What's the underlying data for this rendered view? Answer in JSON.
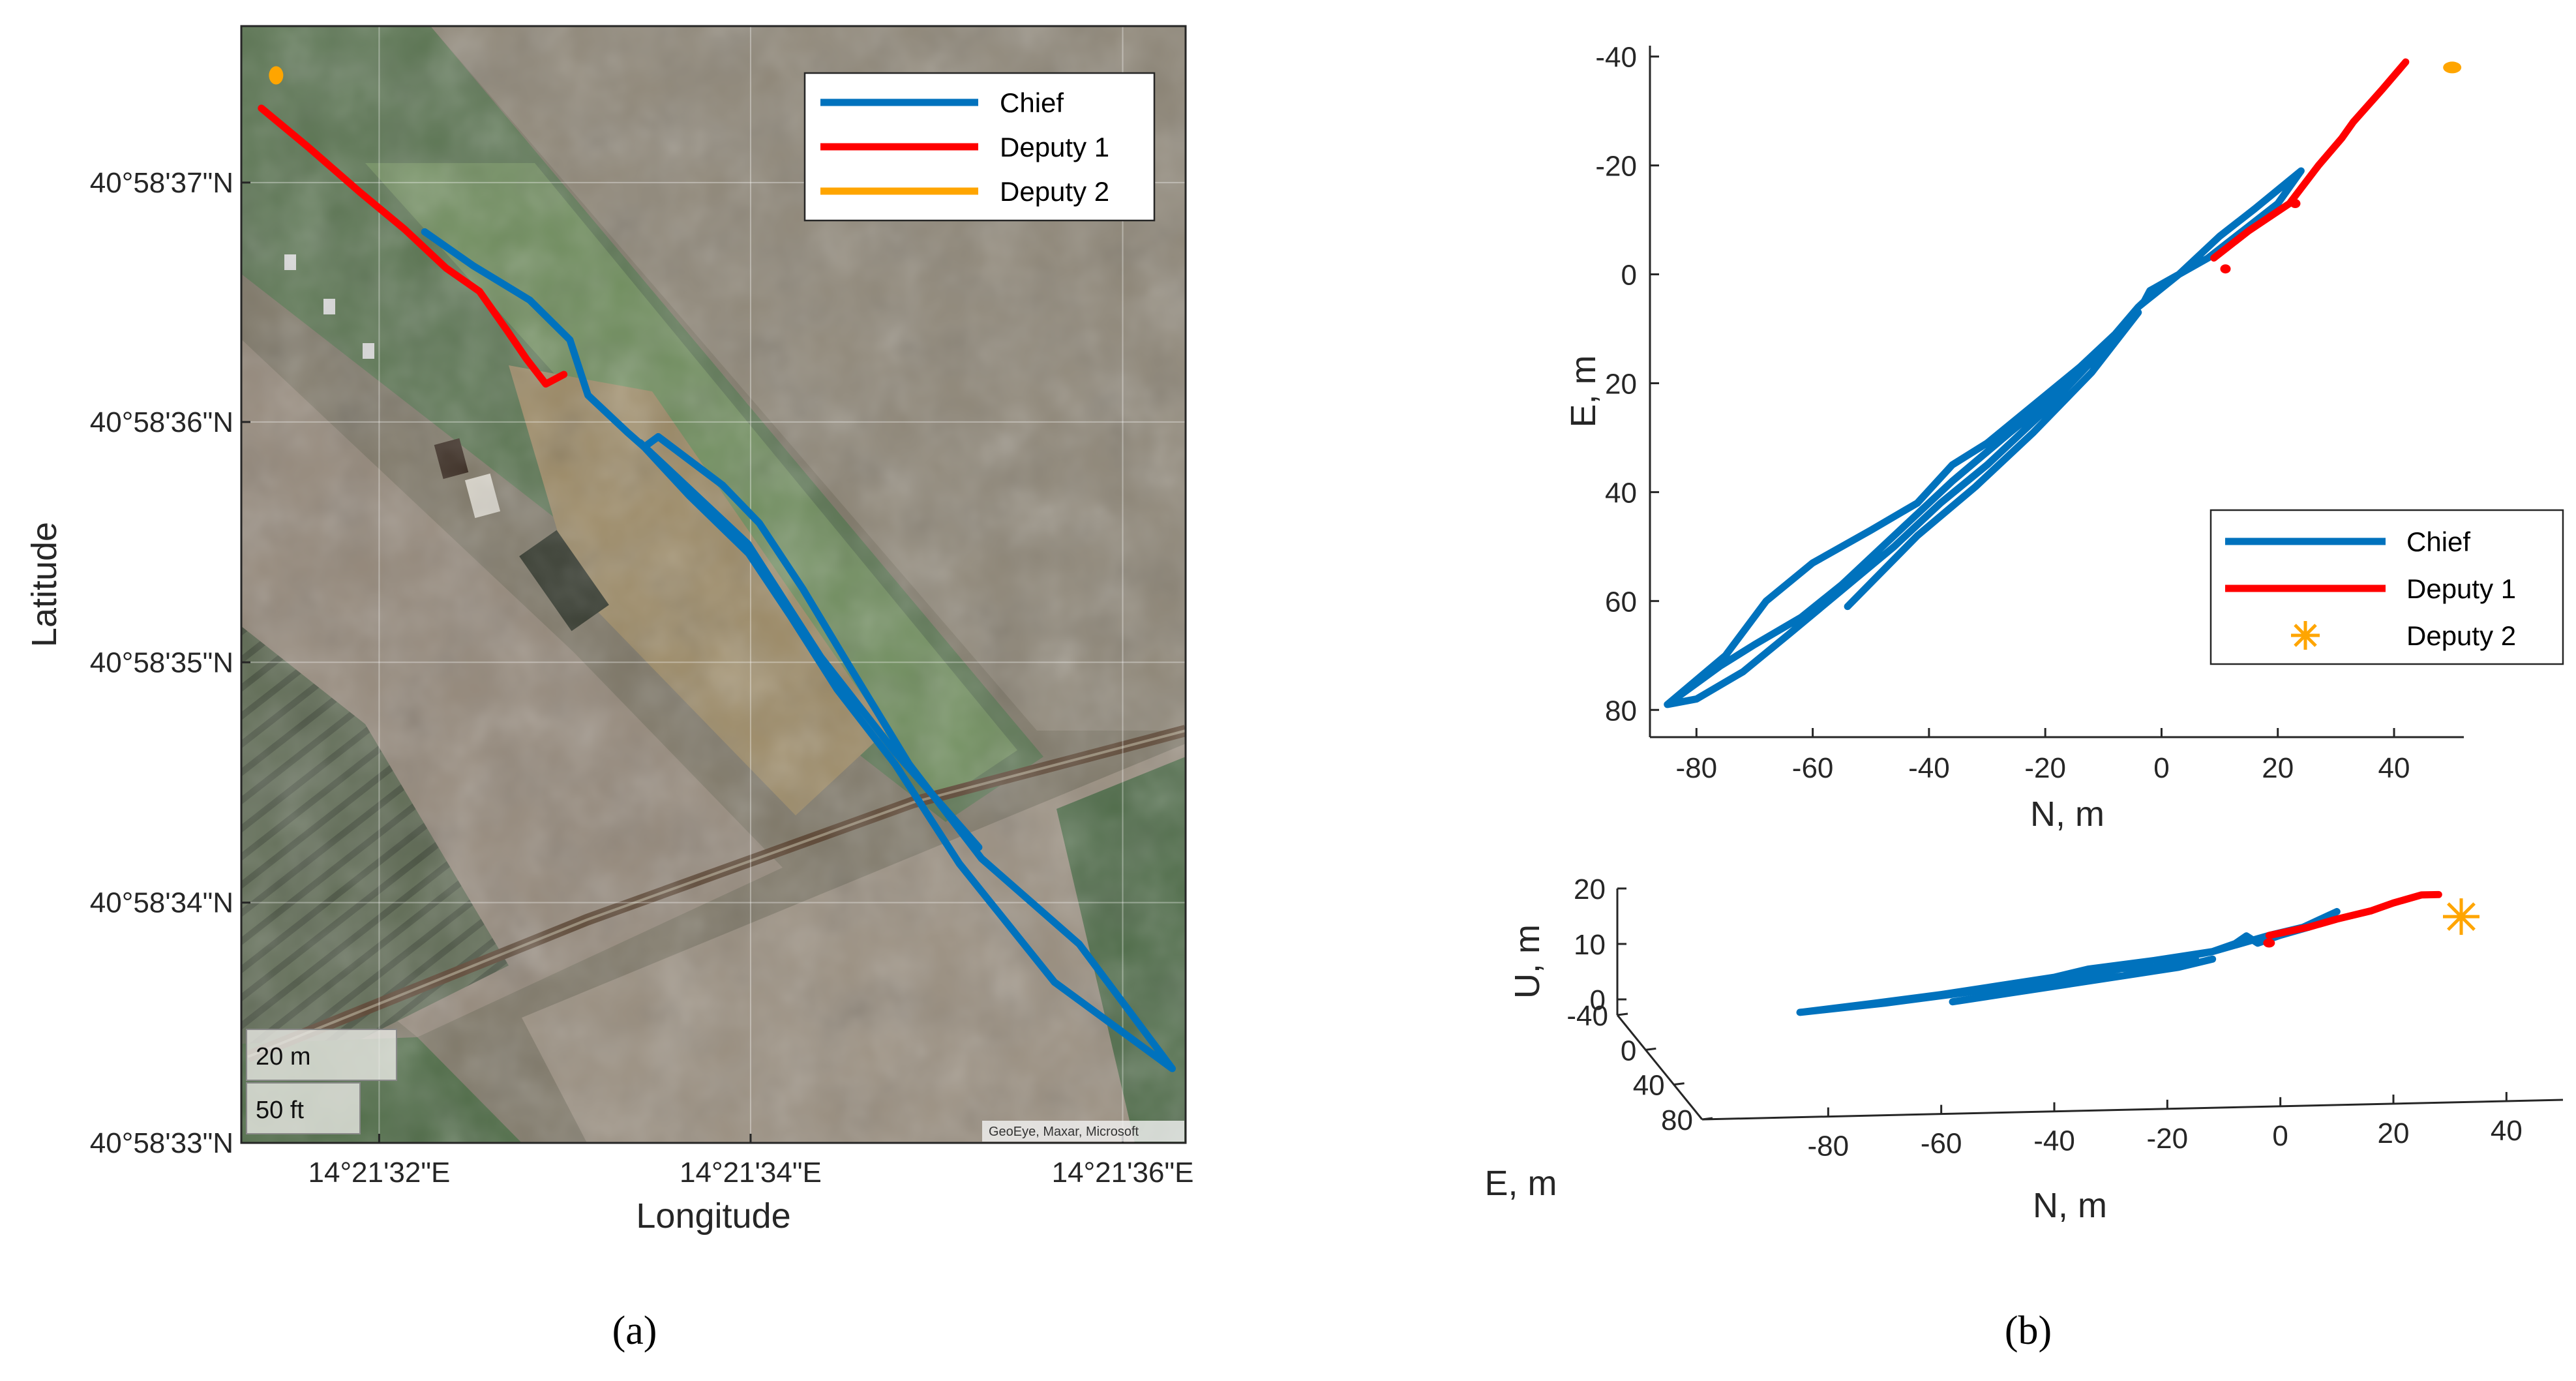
{
  "colors": {
    "chief": "#0072BD",
    "deputy1": "#FF0000",
    "deputy2": "#FFA500",
    "axis": "#262626"
  },
  "panels": {
    "a": "(a)",
    "b": "(b)"
  },
  "chart_data": [
    {
      "id": "map",
      "type": "line",
      "title": "",
      "xlabel": "Longitude",
      "ylabel": "Latitude",
      "xlim": [
        14.358683,
        14.360094
      ],
      "ylim": [
        40.975833,
        40.977125
      ],
      "xticks": [
        {
          "v": 14.358889,
          "label": "14°21'32\"E"
        },
        {
          "v": 14.359444,
          "label": "14°21'34\"E"
        },
        {
          "v": 14.36,
          "label": "14°21'36\"E"
        }
      ],
      "yticks": [
        {
          "v": 40.976944,
          "label": "40°58'37\"N"
        },
        {
          "v": 40.976667,
          "label": "40°58'36\"N"
        },
        {
          "v": 40.976389,
          "label": "40°58'35\"N"
        },
        {
          "v": 40.976111,
          "label": "40°58'34\"N"
        },
        {
          "v": 40.975833,
          "label": "40°58'33\"N"
        }
      ],
      "legend": {
        "position": "top-right"
      },
      "scale_bar": [
        "20 m",
        "50 ft"
      ],
      "credit": "GeoEye, Maxar, Microsoft",
      "series": [
        {
          "name": "Chief",
          "color_key": "chief",
          "marker": "line",
          "points": [
            [
              14.358957,
              40.976887
            ],
            [
              14.359029,
              40.976848
            ],
            [
              14.359114,
              40.976808
            ],
            [
              14.359174,
              40.976762
            ],
            [
              14.359201,
              40.976698
            ],
            [
              14.35926,
              40.976655
            ],
            [
              14.359285,
              40.976638
            ],
            [
              14.359306,
              40.97665
            ],
            [
              14.359402,
              40.976594
            ],
            [
              14.359457,
              40.97655
            ],
            [
              14.359522,
              40.976474
            ],
            [
              14.359592,
              40.976384
            ],
            [
              14.359681,
              40.976271
            ],
            [
              14.359789,
              40.976162
            ],
            [
              14.359935,
              40.976063
            ],
            [
              14.360074,
              40.975919
            ],
            [
              14.359898,
              40.976019
            ],
            [
              14.359756,
              40.976156
            ],
            [
              14.35966,
              40.976271
            ],
            [
              14.359573,
              40.976358
            ],
            [
              14.359504,
              40.976442
            ],
            [
              14.359441,
              40.976515
            ],
            [
              14.359352,
              40.976582
            ],
            [
              14.359279,
              40.976643
            ],
            [
              14.35944,
              40.976526
            ],
            [
              14.359549,
              40.976395
            ],
            [
              14.35966,
              40.976285
            ],
            [
              14.359785,
              40.976175
            ]
          ]
        },
        {
          "name": "Deputy 1",
          "color_key": "deputy1",
          "marker": "line",
          "points": [
            [
              14.358713,
              40.97703
            ],
            [
              14.358783,
              40.976985
            ],
            [
              14.35886,
              40.976933
            ],
            [
              14.358927,
              40.97689
            ],
            [
              14.358989,
              40.976845
            ],
            [
              14.359039,
              40.976818
            ],
            [
              14.35908,
              40.976773
            ],
            [
              14.359109,
              40.97674
            ],
            [
              14.359138,
              40.976711
            ],
            [
              14.359165,
              40.976722
            ]
          ]
        },
        {
          "name": "Deputy 2",
          "color_key": "deputy2",
          "marker": "dot",
          "points": [
            [
              14.358735,
              40.977068
            ]
          ]
        }
      ]
    },
    {
      "id": "ne",
      "type": "line",
      "title": "",
      "xlabel": "N, m",
      "ylabel": "E, m",
      "xlim": [
        -88,
        52
      ],
      "ylim": [
        85,
        -42
      ],
      "yreversed": true,
      "xticks": [
        -80,
        -60,
        -40,
        -20,
        0,
        20,
        40
      ],
      "yticks": [
        -40,
        -20,
        0,
        20,
        40,
        60,
        80
      ],
      "legend": {
        "position": "bottom-right"
      },
      "series": [
        {
          "name": "Chief",
          "color_key": "chief",
          "marker": "line",
          "points": [
            [
              -85,
              79
            ],
            [
              -75,
              70
            ],
            [
              -68,
              60
            ],
            [
              -60,
              53
            ],
            [
              -50,
              47
            ],
            [
              -42,
              42
            ],
            [
              -36,
              35
            ],
            [
              -30,
              31
            ],
            [
              -22,
              24
            ],
            [
              -14,
              17
            ],
            [
              -6,
              9
            ],
            [
              -4,
              6
            ],
            [
              -3,
              5
            ],
            [
              -2,
              3
            ],
            [
              3,
              0
            ],
            [
              8,
              -3
            ],
            [
              14,
              -8
            ],
            [
              20,
              -13
            ],
            [
              24,
              -19
            ],
            [
              16,
              -12
            ],
            [
              10,
              -7
            ],
            [
              3,
              0
            ],
            [
              -4,
              6
            ],
            [
              -12,
              16
            ],
            [
              -20,
              25
            ],
            [
              -30,
              35
            ],
            [
              -38,
              42
            ],
            [
              -46,
              50
            ],
            [
              -55,
              58
            ],
            [
              -64,
              66
            ],
            [
              -72,
              73
            ],
            [
              -80,
              78
            ],
            [
              -85,
              79
            ],
            [
              -76,
              72
            ],
            [
              -70,
              68
            ],
            [
              -62,
              63
            ],
            [
              -55,
              57
            ],
            [
              -46,
              48
            ],
            [
              -36,
              38
            ],
            [
              -26,
              29
            ],
            [
              -18,
              22
            ],
            [
              -8,
              12
            ],
            [
              -4,
              7
            ],
            [
              -12,
              18
            ],
            [
              -22,
              29
            ],
            [
              -32,
              39
            ],
            [
              -42,
              48
            ],
            [
              -54,
              61
            ]
          ]
        },
        {
          "name": "Deputy 1",
          "color_key": "deputy1",
          "marker": "line",
          "points": [
            [
              9,
              -3
            ],
            [
              15,
              -8
            ],
            [
              22,
              -13
            ],
            [
              27,
              -20
            ],
            [
              31,
              -25
            ],
            [
              33,
              -28
            ],
            [
              38,
              -34
            ],
            [
              42,
              -39
            ]
          ]
        },
        {
          "name": "Deputy 1",
          "color_key": "deputy1",
          "marker": "dot",
          "points": [
            [
              11,
              -1
            ],
            [
              23,
              -13
            ]
          ]
        },
        {
          "name": "Deputy 2",
          "color_key": "deputy2",
          "marker": "star",
          "points": [
            [
              50,
              -38
            ]
          ]
        }
      ]
    },
    {
      "id": "neu",
      "type": "line",
      "title": "",
      "xlabel": "N, m",
      "ylabel": "U, m",
      "zlabel": "E, m",
      "xticks": [
        -80,
        -60,
        -40,
        -20,
        0,
        20,
        40
      ],
      "zticks": [
        20,
        10,
        0
      ],
      "eticks": [
        -40,
        0,
        40,
        80
      ],
      "series": [
        {
          "name": "Chief",
          "color_key": "chief",
          "marker": "line",
          "points": [
            [
              -85,
              -3
            ],
            [
              -70,
              -2
            ],
            [
              -60,
              -1
            ],
            [
              -48,
              0
            ],
            [
              -35,
              1
            ],
            [
              -28,
              2
            ],
            [
              -20,
              3
            ],
            [
              -12,
              4
            ],
            [
              -8,
              5
            ],
            [
              -6,
              6
            ],
            [
              -4,
              5
            ],
            [
              0,
              6
            ],
            [
              5,
              7
            ],
            [
              10,
              9
            ],
            [
              4,
              7
            ],
            [
              -2,
              6
            ],
            [
              -12,
              4
            ],
            [
              -22,
              3
            ],
            [
              -34,
              2
            ],
            [
              -46,
              0
            ],
            [
              -58,
              -1
            ],
            [
              -70,
              -2
            ],
            [
              -85,
              -3
            ],
            [
              -72,
              -2
            ],
            [
              -60,
              -1
            ],
            [
              -50,
              0
            ],
            [
              -40,
              1
            ],
            [
              -30,
              2
            ],
            [
              -22,
              2
            ],
            [
              -15,
              3
            ]
          ]
        },
        {
          "name": "Chief",
          "color_key": "chief",
          "marker": "line",
          "points": [
            [
              -58,
              -2
            ],
            [
              -48,
              -1
            ],
            [
              -38,
              0
            ],
            [
              -28,
              1
            ],
            [
              -18,
              2
            ],
            [
              -12,
              3
            ]
          ]
        },
        {
          "name": "Deputy 1",
          "color_key": "deputy1",
          "marker": "line",
          "points": [
            [
              -2,
              6
            ],
            [
              5,
              7
            ],
            [
              10,
              8
            ],
            [
              16,
              9
            ],
            [
              20,
              10
            ],
            [
              25,
              11
            ],
            [
              28,
              11
            ]
          ]
        },
        {
          "name": "Deputy 1",
          "color_key": "deputy1",
          "marker": "dot",
          "points": [
            [
              -2,
              5
            ]
          ]
        },
        {
          "name": "Deputy 2",
          "color_key": "deputy2",
          "marker": "star",
          "points": [
            [
              32,
              8
            ]
          ]
        }
      ]
    }
  ]
}
